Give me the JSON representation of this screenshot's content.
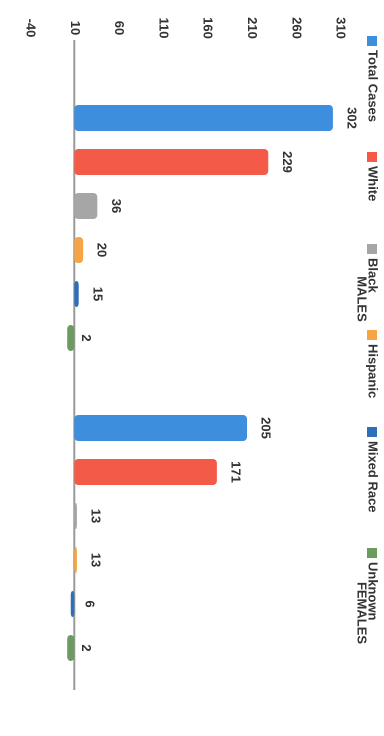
{
  "chart_data": {
    "type": "bar",
    "orientation": "rotated-90-clockwise",
    "groups": [
      "MALES",
      "FEMALES"
    ],
    "series": [
      {
        "name": "Total Cases",
        "color": "#3d8edd",
        "values": [
          302,
          205
        ]
      },
      {
        "name": "White",
        "color": "#f45a48",
        "values": [
          229,
          171
        ]
      },
      {
        "name": "Black",
        "color": "#a6a6a6",
        "values": [
          36,
          13
        ]
      },
      {
        "name": "Hispanic",
        "color": "#f5a545",
        "values": [
          20,
          13
        ]
      },
      {
        "name": "Mixed Race",
        "color": "#2f6fb9",
        "values": [
          15,
          6
        ]
      },
      {
        "name": "Unknown",
        "color": "#6b9b5e",
        "values": [
          2,
          2
        ]
      }
    ],
    "value_axis": {
      "ticks": [
        "310",
        "260",
        "210",
        "160",
        "110",
        "60",
        "10",
        "-40"
      ],
      "min": -40,
      "max": 310
    },
    "legend_position": "bottom",
    "grid": false
  }
}
